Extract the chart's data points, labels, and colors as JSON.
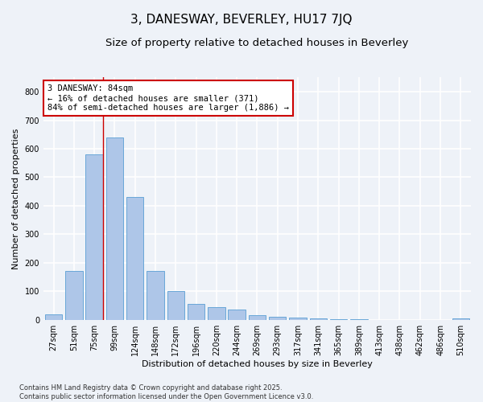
{
  "title": "3, DANESWAY, BEVERLEY, HU17 7JQ",
  "subtitle": "Size of property relative to detached houses in Beverley",
  "xlabel": "Distribution of detached houses by size in Beverley",
  "ylabel": "Number of detached properties",
  "categories": [
    "27sqm",
    "51sqm",
    "75sqm",
    "99sqm",
    "124sqm",
    "148sqm",
    "172sqm",
    "196sqm",
    "220sqm",
    "244sqm",
    "269sqm",
    "293sqm",
    "317sqm",
    "341sqm",
    "365sqm",
    "389sqm",
    "413sqm",
    "438sqm",
    "462sqm",
    "486sqm",
    "510sqm"
  ],
  "values": [
    20,
    170,
    580,
    640,
    430,
    170,
    100,
    55,
    45,
    35,
    15,
    10,
    8,
    5,
    3,
    1,
    0,
    0,
    0,
    0,
    5
  ],
  "bar_color": "#aec6e8",
  "bar_edge_color": "#5a9fd4",
  "background_color": "#eef2f8",
  "grid_color": "#ffffff",
  "vline_color": "#cc0000",
  "annotation_text": "3 DANESWAY: 84sqm\n← 16% of detached houses are smaller (371)\n84% of semi-detached houses are larger (1,886) →",
  "annotation_box_color": "#ffffff",
  "annotation_box_edge": "#cc0000",
  "ylim": [
    0,
    850
  ],
  "yticks": [
    0,
    100,
    200,
    300,
    400,
    500,
    600,
    700,
    800
  ],
  "footer_text": "Contains HM Land Registry data © Crown copyright and database right 2025.\nContains public sector information licensed under the Open Government Licence v3.0.",
  "title_fontsize": 11,
  "subtitle_fontsize": 9.5,
  "axis_label_fontsize": 8,
  "tick_fontsize": 7,
  "annotation_fontsize": 7.5,
  "footer_fontsize": 6
}
